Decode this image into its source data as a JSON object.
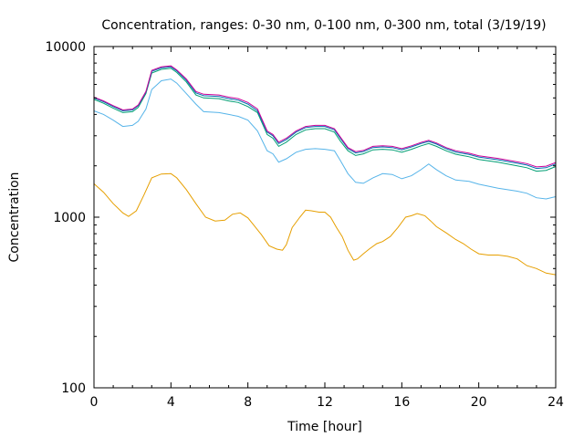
{
  "chart_data": {
    "type": "line",
    "title": "Concentration, ranges: 0-30 nm, 0-100 nm, 0-300 nm, total (3/19/19)",
    "xlabel": "Time [hour]",
    "ylabel": "Concentration",
    "xlim": [
      0,
      24
    ],
    "ylim": [
      100,
      10000
    ],
    "yscale": "log",
    "grid": false,
    "legend": "none",
    "xticks": [
      "0",
      "4",
      "8",
      "12",
      "16",
      "20",
      "24"
    ],
    "yticks": [
      "100",
      "1000",
      "10000"
    ],
    "series": [
      {
        "color": "#e69f00",
        "x": [
          0,
          0.5,
          1,
          1.5,
          1.8,
          2.2,
          2.6,
          3,
          3.5,
          4,
          4.3,
          4.8,
          5.3,
          5.8,
          6.3,
          6.8,
          7.2,
          7.6,
          8,
          8.3,
          8.7,
          9.1,
          9.5,
          9.8,
          10,
          10.3,
          10.7,
          11,
          11.3,
          11.7,
          12,
          12.3,
          12.6,
          12.9,
          13.2,
          13.5,
          13.7,
          14,
          14.3,
          14.7,
          15,
          15.4,
          15.8,
          16.2,
          16.5,
          16.8,
          17.2,
          17.5,
          17.8,
          18.3,
          18.8,
          19.2,
          19.6,
          20,
          20.5,
          21,
          21.5,
          22,
          22.5,
          23,
          23.5,
          24
        ],
        "values": [
          1570,
          1400,
          1200,
          1060,
          1010,
          1090,
          1350,
          1700,
          1790,
          1800,
          1700,
          1450,
          1200,
          1000,
          950,
          960,
          1040,
          1060,
          990,
          900,
          790,
          680,
          650,
          640,
          690,
          870,
          1000,
          1100,
          1090,
          1070,
          1070,
          1000,
          870,
          770,
          640,
          560,
          570,
          610,
          650,
          700,
          720,
          770,
          870,
          1000,
          1020,
          1050,
          1020,
          950,
          880,
          810,
          740,
          700,
          650,
          610,
          600,
          600,
          590,
          570,
          520,
          500,
          470,
          460
        ]
      },
      {
        "color": "#56b4e9",
        "x": [
          0,
          0.5,
          1,
          1.5,
          2,
          2.3,
          2.7,
          3,
          3.5,
          4,
          4.3,
          4.8,
          5.3,
          5.7,
          6.5,
          7,
          7.5,
          8,
          8.5,
          9,
          9.3,
          9.6,
          10,
          10.5,
          11,
          11.5,
          12,
          12.5,
          12.8,
          13.2,
          13.6,
          14,
          14.5,
          15,
          15.5,
          16,
          16.5,
          17,
          17.4,
          17.8,
          18.3,
          18.8,
          19.5,
          20,
          21,
          22,
          22.5,
          23,
          23.5,
          24
        ],
        "values": [
          4200,
          4000,
          3700,
          3400,
          3450,
          3650,
          4300,
          5600,
          6300,
          6450,
          6100,
          5300,
          4600,
          4150,
          4100,
          4000,
          3900,
          3700,
          3200,
          2450,
          2350,
          2100,
          2200,
          2400,
          2500,
          2520,
          2500,
          2450,
          2150,
          1800,
          1600,
          1580,
          1700,
          1800,
          1780,
          1680,
          1750,
          1900,
          2050,
          1900,
          1750,
          1650,
          1620,
          1560,
          1480,
          1420,
          1380,
          1300,
          1280,
          1320
        ]
      },
      {
        "color": "#009e73",
        "x": [
          0,
          0.5,
          1,
          1.5,
          2,
          2.3,
          2.7,
          3,
          3.5,
          4,
          4.3,
          4.8,
          5.3,
          5.7,
          6.5,
          7,
          7.5,
          8,
          8.5,
          9,
          9.3,
          9.6,
          10,
          10.5,
          11,
          11.5,
          12,
          12.5,
          12.8,
          13.2,
          13.6,
          14,
          14.5,
          15,
          15.5,
          16,
          16.5,
          17,
          17.4,
          17.8,
          18.3,
          18.8,
          19.5,
          20,
          21,
          22,
          22.5,
          23,
          23.5,
          24
        ],
        "values": [
          4900,
          4650,
          4350,
          4100,
          4150,
          4400,
          5300,
          7000,
          7350,
          7450,
          7050,
          6200,
          5200,
          5000,
          4950,
          4800,
          4700,
          4450,
          4100,
          3050,
          2900,
          2600,
          2750,
          3050,
          3250,
          3300,
          3300,
          3150,
          2800,
          2450,
          2300,
          2350,
          2480,
          2500,
          2480,
          2400,
          2500,
          2620,
          2700,
          2600,
          2450,
          2340,
          2260,
          2180,
          2100,
          2000,
          1950,
          1860,
          1880,
          1980
        ]
      },
      {
        "color": "#0072b2",
        "x": [
          0,
          0.5,
          1,
          1.5,
          2,
          2.3,
          2.7,
          3,
          3.5,
          4,
          4.3,
          4.8,
          5.3,
          5.7,
          6.5,
          7,
          7.5,
          8,
          8.5,
          9,
          9.3,
          9.6,
          10,
          10.5,
          11,
          11.5,
          12,
          12.5,
          12.8,
          13.2,
          13.6,
          14,
          14.5,
          15,
          15.5,
          16,
          16.5,
          17,
          17.4,
          17.8,
          18.3,
          18.8,
          19.5,
          20,
          21,
          22,
          22.5,
          23,
          23.5,
          24
        ],
        "values": [
          5000,
          4750,
          4450,
          4200,
          4250,
          4500,
          5400,
          7150,
          7500,
          7600,
          7200,
          6350,
          5350,
          5150,
          5100,
          4950,
          4850,
          4600,
          4200,
          3150,
          3000,
          2700,
          2850,
          3150,
          3350,
          3400,
          3400,
          3250,
          2900,
          2520,
          2380,
          2420,
          2560,
          2580,
          2560,
          2480,
          2580,
          2700,
          2780,
          2680,
          2520,
          2410,
          2330,
          2250,
          2170,
          2070,
          2020,
          1930,
          1950,
          2050
        ]
      },
      {
        "color": "#cc0099",
        "x": [
          0,
          0.5,
          1,
          1.5,
          2,
          2.3,
          2.7,
          3,
          3.5,
          4,
          4.3,
          4.8,
          5.3,
          5.7,
          6.5,
          7,
          7.5,
          8,
          8.5,
          9,
          9.3,
          9.6,
          10,
          10.5,
          11,
          11.5,
          12,
          12.5,
          12.8,
          13.2,
          13.6,
          14,
          14.5,
          15,
          15.5,
          16,
          16.5,
          17,
          17.4,
          17.8,
          18.3,
          18.8,
          19.5,
          20,
          21,
          22,
          22.5,
          23,
          23.5,
          24
        ],
        "values": [
          5050,
          4800,
          4500,
          4250,
          4300,
          4550,
          5450,
          7250,
          7600,
          7700,
          7300,
          6450,
          5450,
          5250,
          5200,
          5050,
          4950,
          4700,
          4300,
          3200,
          3050,
          2750,
          2900,
          3200,
          3400,
          3450,
          3450,
          3300,
          2950,
          2560,
          2420,
          2460,
          2600,
          2620,
          2600,
          2520,
          2620,
          2740,
          2820,
          2720,
          2560,
          2450,
          2370,
          2290,
          2210,
          2110,
          2060,
          1970,
          1990,
          2090
        ]
      }
    ]
  }
}
